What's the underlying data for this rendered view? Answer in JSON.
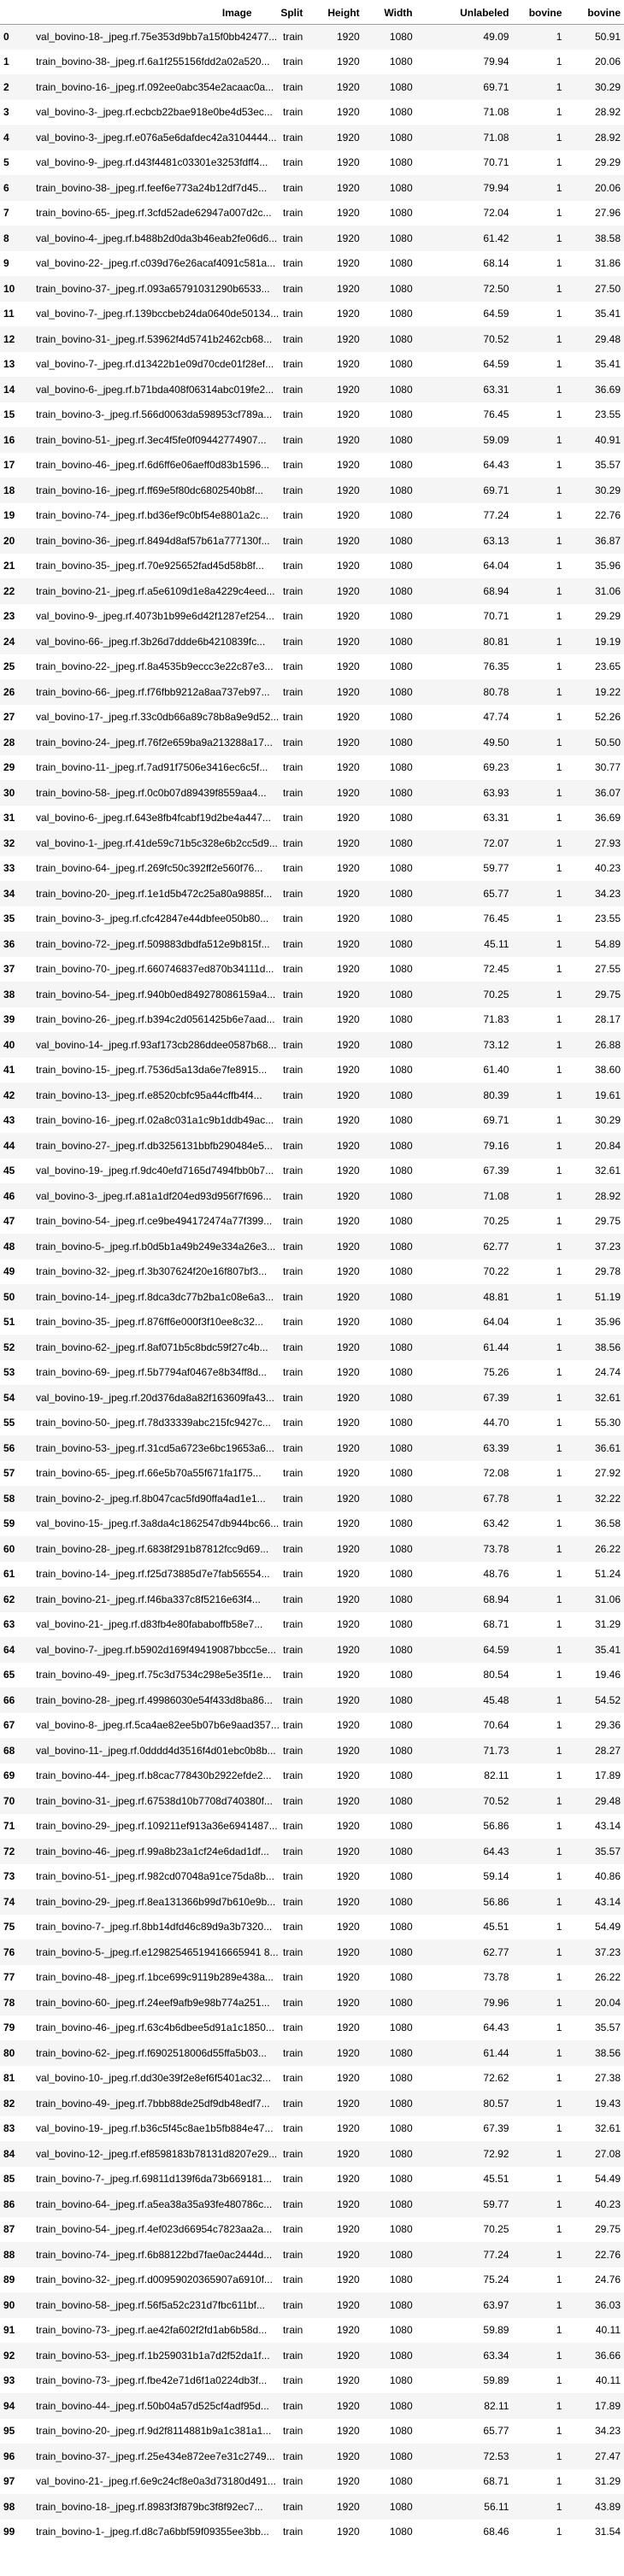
{
  "table": {
    "columns": [
      "",
      "Image",
      "Split",
      "Height",
      "Width",
      "Unlabeled",
      "bovine",
      "bovine"
    ],
    "rows": [
      [
        "0",
        "val_bovino-18-_jpeg.rf.75e353d9bb7a15f0bb42477...",
        "train",
        "1920",
        "1080",
        "49.09",
        "1",
        "50.91"
      ],
      [
        "1",
        "train_bovino-38-_jpeg.rf.6a1f255156fdd2a02a520...",
        "train",
        "1920",
        "1080",
        "79.94",
        "1",
        "20.06"
      ],
      [
        "2",
        "train_bovino-16-_jpeg.rf.092ee0abc354e2acaac0a...",
        "train",
        "1920",
        "1080",
        "69.71",
        "1",
        "30.29"
      ],
      [
        "3",
        "val_bovino-3-_jpeg.rf.ecbcb22bae918e0be4d53ec...",
        "train",
        "1920",
        "1080",
        "71.08",
        "1",
        "28.92"
      ],
      [
        "4",
        "val_bovino-3-_jpeg.rf.e076a5e6dafdec42a3104444...",
        "train",
        "1920",
        "1080",
        "71.08",
        "1",
        "28.92"
      ],
      [
        "5",
        "val_bovino-9-_jpeg.rf.d43f4481c03301e3253fdff4...",
        "train",
        "1920",
        "1080",
        "70.71",
        "1",
        "29.29"
      ],
      [
        "6",
        "train_bovino-38-_jpeg.rf.feef6e773a24b12df7d45...",
        "train",
        "1920",
        "1080",
        "79.94",
        "1",
        "20.06"
      ],
      [
        "7",
        "train_bovino-65-_jpeg.rf.3cfd52ade62947a007d2c...",
        "train",
        "1920",
        "1080",
        "72.04",
        "1",
        "27.96"
      ],
      [
        "8",
        "val_bovino-4-_jpeg.rf.b488b2d0da3b46eab2fe06d6...",
        "train",
        "1920",
        "1080",
        "61.42",
        "1",
        "38.58"
      ],
      [
        "9",
        "val_bovino-22-_jpeg.rf.c039d76e26acaf4091c581a...",
        "train",
        "1920",
        "1080",
        "68.14",
        "1",
        "31.86"
      ],
      [
        "10",
        "train_bovino-37-_jpeg.rf.093a65791031290b6533...",
        "train",
        "1920",
        "1080",
        "72.50",
        "1",
        "27.50"
      ],
      [
        "11",
        "val_bovino-7-_jpeg.rf.139bccbeb24da0640de50134...",
        "train",
        "1920",
        "1080",
        "64.59",
        "1",
        "35.41"
      ],
      [
        "12",
        "train_bovino-31-_jpeg.rf.53962f4d5741b2462cb68...",
        "train",
        "1920",
        "1080",
        "70.52",
        "1",
        "29.48"
      ],
      [
        "13",
        "val_bovino-7-_jpeg.rf.d13422b1e09d70cde01f28ef...",
        "train",
        "1920",
        "1080",
        "64.59",
        "1",
        "35.41"
      ],
      [
        "14",
        "val_bovino-6-_jpeg.rf.b71bda408f06314abc019fe2...",
        "train",
        "1920",
        "1080",
        "63.31",
        "1",
        "36.69"
      ],
      [
        "15",
        "train_bovino-3-_jpeg.rf.566d0063da598953cf789a...",
        "train",
        "1920",
        "1080",
        "76.45",
        "1",
        "23.55"
      ],
      [
        "16",
        "train_bovino-51-_jpeg.rf.3ec4f5fe0f09442774907...",
        "train",
        "1920",
        "1080",
        "59.09",
        "1",
        "40.91"
      ],
      [
        "17",
        "train_bovino-46-_jpeg.rf.6d6ff6e06aeff0d83b1596...",
        "train",
        "1920",
        "1080",
        "64.43",
        "1",
        "35.57"
      ],
      [
        "18",
        "train_bovino-16-_jpeg.rf.ff69e5f80dc6802540b8f...",
        "train",
        "1920",
        "1080",
        "69.71",
        "1",
        "30.29"
      ],
      [
        "19",
        "train_bovino-74-_jpeg.rf.bd36ef9c0bf54e8801a2c...",
        "train",
        "1920",
        "1080",
        "77.24",
        "1",
        "22.76"
      ],
      [
        "20",
        "train_bovino-36-_jpeg.rf.8494d8af57b61a777130f...",
        "train",
        "1920",
        "1080",
        "63.13",
        "1",
        "36.87"
      ],
      [
        "21",
        "train_bovino-35-_jpeg.rf.70e925652fad45d58b8f...",
        "train",
        "1920",
        "1080",
        "64.04",
        "1",
        "35.96"
      ],
      [
        "22",
        "train_bovino-21-_jpeg.rf.a5e6109d1e8a4229c4eed...",
        "train",
        "1920",
        "1080",
        "68.94",
        "1",
        "31.06"
      ],
      [
        "23",
        "val_bovino-9-_jpeg.rf.4073b1b99e6d42f1287ef254...",
        "train",
        "1920",
        "1080",
        "70.71",
        "1",
        "29.29"
      ],
      [
        "24",
        "val_bovino-66-_jpeg.rf.3b26d7ddde6b4210839fc...",
        "train",
        "1920",
        "1080",
        "80.81",
        "1",
        "19.19"
      ],
      [
        "25",
        "train_bovino-22-_jpeg.rf.8a4535b9eccc3e22c87e3...",
        "train",
        "1920",
        "1080",
        "76.35",
        "1",
        "23.65"
      ],
      [
        "26",
        "train_bovino-66-_jpeg.rf.f76fbb9212a8aa737eb97...",
        "train",
        "1920",
        "1080",
        "80.78",
        "1",
        "19.22"
      ],
      [
        "27",
        "val_bovino-17-_jpeg.rf.33c0db66a89c78b8a9e9d52...",
        "train",
        "1920",
        "1080",
        "47.74",
        "1",
        "52.26"
      ],
      [
        "28",
        "train_bovino-24-_jpeg.rf.76f2e659ba9a213288a17...",
        "train",
        "1920",
        "1080",
        "49.50",
        "1",
        "50.50"
      ],
      [
        "29",
        "train_bovino-11-_jpeg.rf.7ad91f7506e3416ec6c5f...",
        "train",
        "1920",
        "1080",
        "69.23",
        "1",
        "30.77"
      ],
      [
        "30",
        "train_bovino-58-_jpeg.rf.0c0b07d89439f8559aa4...",
        "train",
        "1920",
        "1080",
        "63.93",
        "1",
        "36.07"
      ],
      [
        "31",
        "val_bovino-6-_jpeg.rf.643e8fb4fcabf19d2be4a447...",
        "train",
        "1920",
        "1080",
        "63.31",
        "1",
        "36.69"
      ],
      [
        "32",
        "val_bovino-1-_jpeg.rf.41de59c71b5c328e6b2cc5d9...",
        "train",
        "1920",
        "1080",
        "72.07",
        "1",
        "27.93"
      ],
      [
        "33",
        "train_bovino-64-_jpeg.rf.269fc50c392ff2e560f76...",
        "train",
        "1920",
        "1080",
        "59.77",
        "1",
        "40.23"
      ],
      [
        "34",
        "train_bovino-20-_jpeg.rf.1e1d5b472c25a80a9885f...",
        "train",
        "1920",
        "1080",
        "65.77",
        "1",
        "34.23"
      ],
      [
        "35",
        "train_bovino-3-_jpeg.rf.cfc42847e44dbfee050b80...",
        "train",
        "1920",
        "1080",
        "76.45",
        "1",
        "23.55"
      ],
      [
        "36",
        "train_bovino-72-_jpeg.rf.509883dbdfa512e9b815f...",
        "train",
        "1920",
        "1080",
        "45.11",
        "1",
        "54.89"
      ],
      [
        "37",
        "train_bovino-70-_jpeg.rf.660746837ed870b34111d...",
        "train",
        "1920",
        "1080",
        "72.45",
        "1",
        "27.55"
      ],
      [
        "38",
        "train_bovino-54-_jpeg.rf.940b0ed849278086159a4...",
        "train",
        "1920",
        "1080",
        "70.25",
        "1",
        "29.75"
      ],
      [
        "39",
        "train_bovino-26-_jpeg.rf.b394c2d0561425b6e7aad...",
        "train",
        "1920",
        "1080",
        "71.83",
        "1",
        "28.17"
      ],
      [
        "40",
        "val_bovino-14-_jpeg.rf.93af173cb286ddee0587b68...",
        "train",
        "1920",
        "1080",
        "73.12",
        "1",
        "26.88"
      ],
      [
        "41",
        "train_bovino-15-_jpeg.rf.7536d5a13da6e7fe8915...",
        "train",
        "1920",
        "1080",
        "61.40",
        "1",
        "38.60"
      ],
      [
        "42",
        "train_bovino-13-_jpeg.rf.e8520cbfc95a44cffb4f4...",
        "train",
        "1920",
        "1080",
        "80.39",
        "1",
        "19.61"
      ],
      [
        "43",
        "train_bovino-16-_jpeg.rf.02a8c031a1c9b1ddb49ac...",
        "train",
        "1920",
        "1080",
        "69.71",
        "1",
        "30.29"
      ],
      [
        "44",
        "train_bovino-27-_jpeg.rf.db3256131bbfb290484e5...",
        "train",
        "1920",
        "1080",
        "79.16",
        "1",
        "20.84"
      ],
      [
        "45",
        "val_bovino-19-_jpeg.rf.9dc40efd7165d7494fbb0b7...",
        "train",
        "1920",
        "1080",
        "67.39",
        "1",
        "32.61"
      ],
      [
        "46",
        "val_bovino-3-_jpeg.rf.a81a1df204ed93d956f7f696...",
        "train",
        "1920",
        "1080",
        "71.08",
        "1",
        "28.92"
      ],
      [
        "47",
        "train_bovino-54-_jpeg.rf.ce9be494172474a77f399...",
        "train",
        "1920",
        "1080",
        "70.25",
        "1",
        "29.75"
      ],
      [
        "48",
        "train_bovino-5-_jpeg.rf.b0d5b1a49b249e334a26e3...",
        "train",
        "1920",
        "1080",
        "62.77",
        "1",
        "37.23"
      ],
      [
        "49",
        "train_bovino-32-_jpeg.rf.3b307624f20e16f807bf3...",
        "train",
        "1920",
        "1080",
        "70.22",
        "1",
        "29.78"
      ],
      [
        "50",
        "train_bovino-14-_jpeg.rf.8dca3dc77b2ba1c08e6a3...",
        "train",
        "1920",
        "1080",
        "48.81",
        "1",
        "51.19"
      ],
      [
        "51",
        "train_bovino-35-_jpeg.rf.876ff6e000f3f10ee8c32...",
        "train",
        "1920",
        "1080",
        "64.04",
        "1",
        "35.96"
      ],
      [
        "52",
        "train_bovino-62-_jpeg.rf.8af071b5c8bdc59f27c4b...",
        "train",
        "1920",
        "1080",
        "61.44",
        "1",
        "38.56"
      ],
      [
        "53",
        "train_bovino-69-_jpeg.rf.5b7794af0467e8b34ff8d...",
        "train",
        "1920",
        "1080",
        "75.26",
        "1",
        "24.74"
      ],
      [
        "54",
        "val_bovino-19-_jpeg.rf.20d376da8a82f163609fa43...",
        "train",
        "1920",
        "1080",
        "67.39",
        "1",
        "32.61"
      ],
      [
        "55",
        "train_bovino-50-_jpeg.rf.78d33339abc215fc9427c...",
        "train",
        "1920",
        "1080",
        "44.70",
        "1",
        "55.30"
      ],
      [
        "56",
        "train_bovino-53-_jpeg.rf.31cd5a6723e6bc19653a6...",
        "train",
        "1920",
        "1080",
        "63.39",
        "1",
        "36.61"
      ],
      [
        "57",
        "train_bovino-65-_jpeg.rf.66e5b70a55f671fa1f75...",
        "train",
        "1920",
        "1080",
        "72.08",
        "1",
        "27.92"
      ],
      [
        "58",
        "train_bovino-2-_jpeg.rf.8b047cac5fd90ffa4ad1e1...",
        "train",
        "1920",
        "1080",
        "67.78",
        "1",
        "32.22"
      ],
      [
        "59",
        "val_bovino-15-_jpeg.rf.3a8da4c1862547db944bc66...",
        "train",
        "1920",
        "1080",
        "63.42",
        "1",
        "36.58"
      ],
      [
        "60",
        "train_bovino-28-_jpeg.rf.6838f291b87812fcc9d69...",
        "train",
        "1920",
        "1080",
        "73.78",
        "1",
        "26.22"
      ],
      [
        "61",
        "train_bovino-14-_jpeg.rf.f25d73885d7e7fab56554...",
        "train",
        "1920",
        "1080",
        "48.76",
        "1",
        "51.24"
      ],
      [
        "62",
        "train_bovino-21-_jpeg.rf.f46ba337c8f5216e63f4...",
        "train",
        "1920",
        "1080",
        "68.94",
        "1",
        "31.06"
      ],
      [
        "63",
        "val_bovino-21-_jpeg.rf.d83fb4e80fababoffb58e7...",
        "train",
        "1920",
        "1080",
        "68.71",
        "1",
        "31.29"
      ],
      [
        "64",
        "val_bovino-7-_jpeg.rf.b5902d169f49419087bbcc5e...",
        "train",
        "1920",
        "1080",
        "64.59",
        "1",
        "35.41"
      ],
      [
        "65",
        "train_bovino-49-_jpeg.rf.75c3d7534c298e5e35f1e...",
        "train",
        "1920",
        "1080",
        "80.54",
        "1",
        "19.46"
      ],
      [
        "66",
        "train_bovino-28-_jpeg.rf.49986030e54f433d8ba86...",
        "train",
        "1920",
        "1080",
        "45.48",
        "1",
        "54.52"
      ],
      [
        "67",
        "val_bovino-8-_jpeg.rf.5ca4ae82ee5b07b6e9aad357...",
        "train",
        "1920",
        "1080",
        "70.64",
        "1",
        "29.36"
      ],
      [
        "68",
        "val_bovino-11-_jpeg.rf.0dddd4d3516f4d01ebc0b8b...",
        "train",
        "1920",
        "1080",
        "71.73",
        "1",
        "28.27"
      ],
      [
        "69",
        "train_bovino-44-_jpeg.rf.b8cac778430b2922efde2...",
        "train",
        "1920",
        "1080",
        "82.11",
        "1",
        "17.89"
      ],
      [
        "70",
        "train_bovino-31-_jpeg.rf.67538d10b7708d740380f...",
        "train",
        "1920",
        "1080",
        "70.52",
        "1",
        "29.48"
      ],
      [
        "71",
        "train_bovino-29-_jpeg.rf.109211ef913a36e6941487...",
        "train",
        "1920",
        "1080",
        "56.86",
        "1",
        "43.14"
      ],
      [
        "72",
        "train_bovino-46-_jpeg.rf.99a8b23a1cf24e6dad1df...",
        "train",
        "1920",
        "1080",
        "64.43",
        "1",
        "35.57"
      ],
      [
        "73",
        "train_bovino-51-_jpeg.rf.982cd07048a91ce75da8b...",
        "train",
        "1920",
        "1080",
        "59.14",
        "1",
        "40.86"
      ],
      [
        "74",
        "train_bovino-29-_jpeg.rf.8ea131366b99d7b610e9b...",
        "train",
        "1920",
        "1080",
        "56.86",
        "1",
        "43.14"
      ],
      [
        "75",
        "train_bovino-7-_jpeg.rf.8bb14dfd46c89d9a3b7320...",
        "train",
        "1920",
        "1080",
        "45.51",
        "1",
        "54.49"
      ],
      [
        "76",
        "train_bovino-5-_jpeg.rf.e12982546519416665941 8...",
        "train",
        "1920",
        "1080",
        "62.77",
        "1",
        "37.23"
      ],
      [
        "77",
        "train_bovino-48-_jpeg.rf.1bce699c9119b289e438a...",
        "train",
        "1920",
        "1080",
        "73.78",
        "1",
        "26.22"
      ],
      [
        "78",
        "train_bovino-60-_jpeg.rf.24eef9afb9e98b774a251...",
        "train",
        "1920",
        "1080",
        "79.96",
        "1",
        "20.04"
      ],
      [
        "79",
        "train_bovino-46-_jpeg.rf.63c4b6dbee5d91a1c1850...",
        "train",
        "1920",
        "1080",
        "64.43",
        "1",
        "35.57"
      ],
      [
        "80",
        "train_bovino-62-_jpeg.rf.f6902518006d55ffa5b03...",
        "train",
        "1920",
        "1080",
        "61.44",
        "1",
        "38.56"
      ],
      [
        "81",
        "val_bovino-10-_jpeg.rf.dd30e39f2e8ef6f5401ac32...",
        "train",
        "1920",
        "1080",
        "72.62",
        "1",
        "27.38"
      ],
      [
        "82",
        "train_bovino-49-_jpeg.rf.7bbb88de25df9db48edf7...",
        "train",
        "1920",
        "1080",
        "80.57",
        "1",
        "19.43"
      ],
      [
        "83",
        "val_bovino-19-_jpeg.rf.b36c5f45c8ae1b5fb884e47...",
        "train",
        "1920",
        "1080",
        "67.39",
        "1",
        "32.61"
      ],
      [
        "84",
        "val_bovino-12-_jpeg.rf.ef8598183b78131d8207e29...",
        "train",
        "1920",
        "1080",
        "72.92",
        "1",
        "27.08"
      ],
      [
        "85",
        "train_bovino-7-_jpeg.rf.69811d139f6da73b669181...",
        "train",
        "1920",
        "1080",
        "45.51",
        "1",
        "54.49"
      ],
      [
        "86",
        "train_bovino-64-_jpeg.rf.a5ea38a35a93fe480786c...",
        "train",
        "1920",
        "1080",
        "59.77",
        "1",
        "40.23"
      ],
      [
        "87",
        "train_bovino-54-_jpeg.rf.4ef023d66954c7823aa2a...",
        "train",
        "1920",
        "1080",
        "70.25",
        "1",
        "29.75"
      ],
      [
        "88",
        "train_bovino-74-_jpeg.rf.6b88122bd7fae0ac2444d...",
        "train",
        "1920",
        "1080",
        "77.24",
        "1",
        "22.76"
      ],
      [
        "89",
        "train_bovino-32-_jpeg.rf.d00959020365907a6910f...",
        "train",
        "1920",
        "1080",
        "75.24",
        "1",
        "24.76"
      ],
      [
        "90",
        "train_bovino-58-_jpeg.rf.56f5a52c231d7fbc611bf...",
        "train",
        "1920",
        "1080",
        "63.97",
        "1",
        "36.03"
      ],
      [
        "91",
        "train_bovino-73-_jpeg.rf.ae42fa602f2fd1ab6b58d...",
        "train",
        "1920",
        "1080",
        "59.89",
        "1",
        "40.11"
      ],
      [
        "92",
        "train_bovino-53-_jpeg.rf.1b259031b1a7d2f52da1f...",
        "train",
        "1920",
        "1080",
        "63.34",
        "1",
        "36.66"
      ],
      [
        "93",
        "train_bovino-73-_jpeg.rf.fbe42e71d6f1a0224db3f...",
        "train",
        "1920",
        "1080",
        "59.89",
        "1",
        "40.11"
      ],
      [
        "94",
        "train_bovino-44-_jpeg.rf.50b04a57d525cf4adf95d...",
        "train",
        "1920",
        "1080",
        "82.11",
        "1",
        "17.89"
      ],
      [
        "95",
        "train_bovino-20-_jpeg.rf.9d2f8114881b9a1c381a1...",
        "train",
        "1920",
        "1080",
        "65.77",
        "1",
        "34.23"
      ],
      [
        "96",
        "train_bovino-37-_jpeg.rf.25e434e872ee7e31c2749...",
        "train",
        "1920",
        "1080",
        "72.53",
        "1",
        "27.47"
      ],
      [
        "97",
        "val_bovino-21-_jpeg.rf.6e9c24cf8e0a3d73180d491...",
        "train",
        "1920",
        "1080",
        "68.71",
        "1",
        "31.29"
      ],
      [
        "98",
        "train_bovino-18-_jpeg.rf.8983f3f879bc3f8f92ec7...",
        "train",
        "1920",
        "1080",
        "56.11",
        "1",
        "43.89"
      ],
      [
        "99",
        "train_bovino-1-_jpeg.rf.d8c7a6bbf59f09355ee3bb...",
        "train",
        "1920",
        "1080",
        "68.46",
        "1",
        "31.54"
      ]
    ]
  }
}
